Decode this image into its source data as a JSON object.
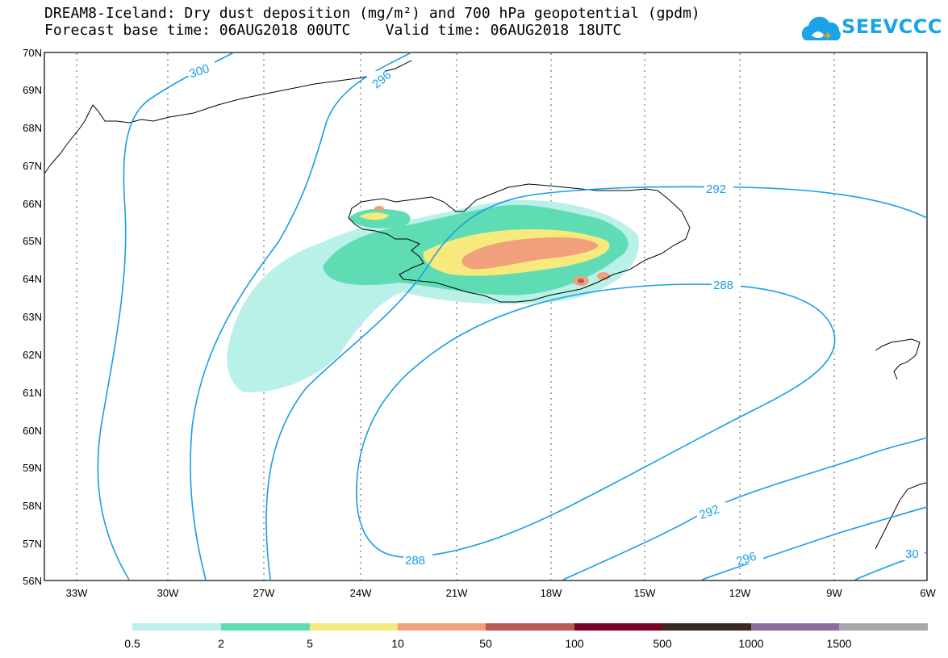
{
  "header": {
    "title": "DREAM8-Iceland: Dry dust deposition (mg/m²) and 700 hPa geopotential (gpdm)",
    "subtitle": "Forecast base time: 06AUG2018 00UTC    Valid time: 06AUG2018 18UTC"
  },
  "logo": {
    "text": "SEEVCCC",
    "icon": "cloud-icon",
    "color": "#1aa3e6"
  },
  "map": {
    "lat_labels": [
      "70N",
      "69N",
      "68N",
      "67N",
      "66N",
      "65N",
      "64N",
      "63N",
      "62N",
      "61N",
      "60N",
      "59N",
      "58N",
      "57N",
      "56N"
    ],
    "lon_labels": [
      "33W",
      "30W",
      "27W",
      "24W",
      "21W",
      "18W",
      "15W",
      "12W",
      "9W",
      "6W"
    ],
    "contour_labels": [
      {
        "id": "c300a",
        "text": "300"
      },
      {
        "id": "c296a",
        "text": "296"
      },
      {
        "id": "c292a",
        "text": "292"
      },
      {
        "id": "c288a",
        "text": "288"
      },
      {
        "id": "c288b",
        "text": "288"
      },
      {
        "id": "c292b",
        "text": "292"
      },
      {
        "id": "c296b",
        "text": "296"
      },
      {
        "id": "c300b",
        "text": "30"
      }
    ],
    "contour_color": "#1a9ee6"
  },
  "legend": {
    "colors": [
      "#b9f0e8",
      "#5fdcb4",
      "#f7ea7c",
      "#f0a07a",
      "#b85a52",
      "#7a0026",
      "#3a2a1e",
      "#8e6aa0",
      "#a8a8a8"
    ],
    "labels": [
      "0.5",
      "2",
      "5",
      "10",
      "50",
      "100",
      "500",
      "1000",
      "1500"
    ]
  }
}
